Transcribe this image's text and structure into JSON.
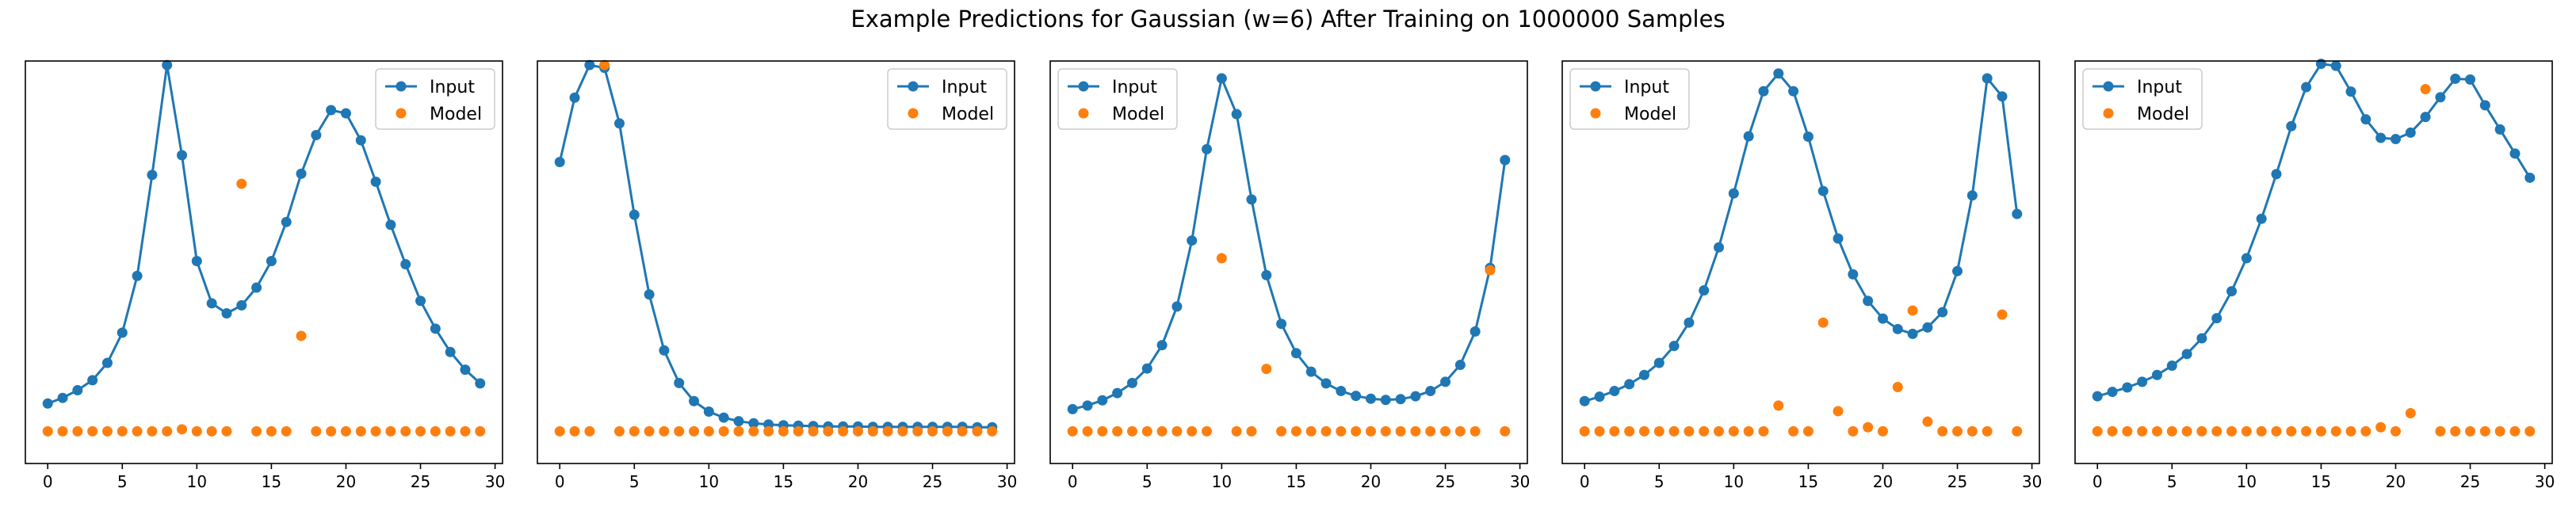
{
  "figure": {
    "title": "Example Predictions for Gaussian (w=6) After Training on 1000000 Samples"
  },
  "colors": {
    "input": "#1f77b4",
    "model": "#ff7f0e",
    "axis": "#000000",
    "background": "#ffffff"
  },
  "chart_data": [
    {
      "type": "line",
      "title": "",
      "xlabel": "",
      "ylabel": "",
      "xlim": [
        -1.5,
        30.5
      ],
      "x_ticks": [
        0,
        5,
        10,
        15,
        20,
        25,
        30
      ],
      "ylim": [
        0,
        1
      ],
      "grid": false,
      "legend_position": "upper right",
      "series": [
        {
          "name": "Input",
          "style": "line-marker",
          "x": [
            0,
            1,
            2,
            3,
            4,
            5,
            6,
            7,
            8,
            9,
            10,
            11,
            12,
            13,
            14,
            15,
            16,
            17,
            18,
            19,
            20,
            21,
            22,
            23,
            24,
            25,
            26,
            27,
            28,
            29
          ],
          "y": [
            0.149,
            0.163,
            0.182,
            0.207,
            0.25,
            0.325,
            0.466,
            0.717,
            0.99,
            0.766,
            0.503,
            0.398,
            0.373,
            0.393,
            0.437,
            0.503,
            0.6,
            0.72,
            0.816,
            0.878,
            0.87,
            0.803,
            0.7,
            0.593,
            0.495,
            0.404,
            0.335,
            0.277,
            0.233,
            0.199
          ]
        },
        {
          "name": "Model",
          "style": "marker",
          "x": [
            0,
            1,
            2,
            3,
            4,
            5,
            6,
            7,
            8,
            9,
            10,
            11,
            12,
            13,
            14,
            15,
            16,
            17,
            18,
            19,
            20,
            21,
            22,
            23,
            24,
            25,
            26,
            27,
            28,
            29
          ],
          "y": [
            0.08,
            0.08,
            0.08,
            0.08,
            0.08,
            0.08,
            0.08,
            0.08,
            0.08,
            0.085,
            0.08,
            0.08,
            0.08,
            0.695,
            0.08,
            0.08,
            0.08,
            0.317,
            0.08,
            0.08,
            0.08,
            0.08,
            0.08,
            0.08,
            0.08,
            0.08,
            0.08,
            0.08,
            0.08,
            0.08
          ]
        }
      ]
    },
    {
      "type": "line",
      "title": "",
      "xlabel": "",
      "ylabel": "",
      "xlim": [
        -1.5,
        30.5
      ],
      "x_ticks": [
        0,
        5,
        10,
        15,
        20,
        25,
        30
      ],
      "ylim": [
        0,
        1
      ],
      "grid": false,
      "legend_position": "upper right",
      "series": [
        {
          "name": "Input",
          "style": "line-marker",
          "x": [
            0,
            1,
            2,
            3,
            4,
            5,
            6,
            7,
            8,
            9,
            10,
            11,
            12,
            13,
            14,
            15,
            16,
            17,
            18,
            19,
            20,
            21,
            22,
            23,
            24,
            25,
            26,
            27,
            28,
            29
          ],
          "y": [
            0.749,
            0.909,
            0.99,
            0.983,
            0.845,
            0.618,
            0.42,
            0.281,
            0.2,
            0.155,
            0.129,
            0.114,
            0.105,
            0.1,
            0.097,
            0.095,
            0.094,
            0.093,
            0.092,
            0.092,
            0.092,
            0.091,
            0.091,
            0.091,
            0.091,
            0.091,
            0.091,
            0.091,
            0.09,
            0.09
          ]
        },
        {
          "name": "Model",
          "style": "marker",
          "x": [
            0,
            1,
            2,
            3,
            4,
            5,
            6,
            7,
            8,
            9,
            10,
            11,
            12,
            13,
            14,
            15,
            16,
            17,
            18,
            19,
            20,
            21,
            22,
            23,
            24,
            25,
            26,
            27,
            28,
            29
          ],
          "y": [
            0.08,
            0.08,
            0.08,
            0.99,
            0.08,
            0.08,
            0.08,
            0.08,
            0.08,
            0.08,
            0.08,
            0.08,
            0.08,
            0.08,
            0.08,
            0.08,
            0.08,
            0.08,
            0.08,
            0.08,
            0.08,
            0.08,
            0.08,
            0.08,
            0.08,
            0.08,
            0.08,
            0.08,
            0.08,
            0.08
          ]
        }
      ]
    },
    {
      "type": "line",
      "title": "",
      "xlabel": "",
      "ylabel": "",
      "xlim": [
        -1.5,
        30.5
      ],
      "x_ticks": [
        0,
        5,
        10,
        15,
        20,
        25,
        30
      ],
      "ylim": [
        0,
        1
      ],
      "grid": false,
      "legend_position": "upper left",
      "series": [
        {
          "name": "Input",
          "style": "line-marker",
          "x": [
            0,
            1,
            2,
            3,
            4,
            5,
            6,
            7,
            8,
            9,
            10,
            11,
            12,
            13,
            14,
            15,
            16,
            17,
            18,
            19,
            20,
            21,
            22,
            23,
            24,
            25,
            26,
            27,
            28,
            29
          ],
          "y": [
            0.135,
            0.144,
            0.157,
            0.175,
            0.2,
            0.236,
            0.294,
            0.39,
            0.554,
            0.781,
            0.957,
            0.868,
            0.656,
            0.468,
            0.347,
            0.274,
            0.228,
            0.199,
            0.18,
            0.168,
            0.161,
            0.158,
            0.16,
            0.167,
            0.18,
            0.203,
            0.245,
            0.328,
            0.486,
            0.754
          ]
        },
        {
          "name": "Model",
          "style": "marker",
          "x": [
            0,
            1,
            2,
            3,
            4,
            5,
            6,
            7,
            8,
            9,
            10,
            11,
            12,
            13,
            14,
            15,
            16,
            17,
            18,
            19,
            20,
            21,
            22,
            23,
            24,
            25,
            26,
            27,
            28,
            29
          ],
          "y": [
            0.08,
            0.08,
            0.08,
            0.08,
            0.08,
            0.08,
            0.08,
            0.08,
            0.08,
            0.08,
            0.51,
            0.08,
            0.08,
            0.235,
            0.08,
            0.08,
            0.08,
            0.08,
            0.08,
            0.08,
            0.08,
            0.08,
            0.08,
            0.08,
            0.08,
            0.08,
            0.08,
            0.08,
            0.48,
            0.08
          ]
        }
      ]
    },
    {
      "type": "line",
      "title": "",
      "xlabel": "",
      "ylabel": "",
      "xlim": [
        -1.5,
        30.5
      ],
      "x_ticks": [
        0,
        5,
        10,
        15,
        20,
        25,
        30
      ],
      "ylim": [
        0,
        1
      ],
      "grid": false,
      "legend_position": "upper left",
      "series": [
        {
          "name": "Input",
          "style": "line-marker",
          "x": [
            0,
            1,
            2,
            3,
            4,
            5,
            6,
            7,
            8,
            9,
            10,
            11,
            12,
            13,
            14,
            15,
            16,
            17,
            18,
            19,
            20,
            21,
            22,
            23,
            24,
            25,
            26,
            27,
            28,
            29
          ],
          "y": [
            0.155,
            0.166,
            0.18,
            0.197,
            0.22,
            0.25,
            0.292,
            0.35,
            0.43,
            0.537,
            0.671,
            0.813,
            0.925,
            0.969,
            0.925,
            0.812,
            0.677,
            0.559,
            0.47,
            0.404,
            0.36,
            0.334,
            0.322,
            0.338,
            0.376,
            0.478,
            0.666,
            0.957,
            0.912,
            0.62
          ]
        },
        {
          "name": "Model",
          "style": "marker",
          "x": [
            0,
            1,
            2,
            3,
            4,
            5,
            6,
            7,
            8,
            9,
            10,
            11,
            12,
            13,
            14,
            15,
            16,
            17,
            18,
            19,
            20,
            21,
            22,
            23,
            24,
            25,
            26,
            27,
            28,
            29
          ],
          "y": [
            0.08,
            0.08,
            0.08,
            0.08,
            0.08,
            0.08,
            0.08,
            0.08,
            0.08,
            0.08,
            0.08,
            0.08,
            0.08,
            0.144,
            0.08,
            0.08,
            0.35,
            0.13,
            0.08,
            0.09,
            0.08,
            0.19,
            0.38,
            0.104,
            0.08,
            0.08,
            0.08,
            0.08,
            0.37,
            0.08
          ]
        }
      ]
    },
    {
      "type": "line",
      "title": "",
      "xlabel": "",
      "ylabel": "",
      "xlim": [
        -1.5,
        30.5
      ],
      "x_ticks": [
        0,
        5,
        10,
        15,
        20,
        25,
        30
      ],
      "ylim": [
        0,
        1
      ],
      "grid": false,
      "legend_position": "upper left",
      "series": [
        {
          "name": "Input",
          "style": "line-marker",
          "x": [
            0,
            1,
            2,
            3,
            4,
            5,
            6,
            7,
            8,
            9,
            10,
            11,
            12,
            13,
            14,
            15,
            16,
            17,
            18,
            19,
            20,
            21,
            22,
            23,
            24,
            25,
            26,
            27,
            28,
            29
          ],
          "y": [
            0.167,
            0.178,
            0.189,
            0.203,
            0.22,
            0.243,
            0.272,
            0.311,
            0.361,
            0.428,
            0.51,
            0.608,
            0.719,
            0.838,
            0.935,
            0.993,
            0.988,
            0.924,
            0.855,
            0.809,
            0.806,
            0.822,
            0.861,
            0.91,
            0.956,
            0.954,
            0.89,
            0.83,
            0.77,
            0.71
          ]
        },
        {
          "name": "Model",
          "style": "marker",
          "x": [
            0,
            1,
            2,
            3,
            4,
            5,
            6,
            7,
            8,
            9,
            10,
            11,
            12,
            13,
            14,
            15,
            16,
            17,
            18,
            19,
            20,
            21,
            22,
            23,
            24,
            25,
            26,
            27,
            28,
            29
          ],
          "y": [
            0.08,
            0.08,
            0.08,
            0.08,
            0.08,
            0.08,
            0.08,
            0.08,
            0.08,
            0.08,
            0.08,
            0.08,
            0.08,
            0.08,
            0.08,
            0.08,
            0.08,
            0.08,
            0.08,
            0.09,
            0.08,
            0.125,
            0.93,
            0.08,
            0.08,
            0.08,
            0.08,
            0.08,
            0.08,
            0.08
          ]
        }
      ]
    }
  ]
}
